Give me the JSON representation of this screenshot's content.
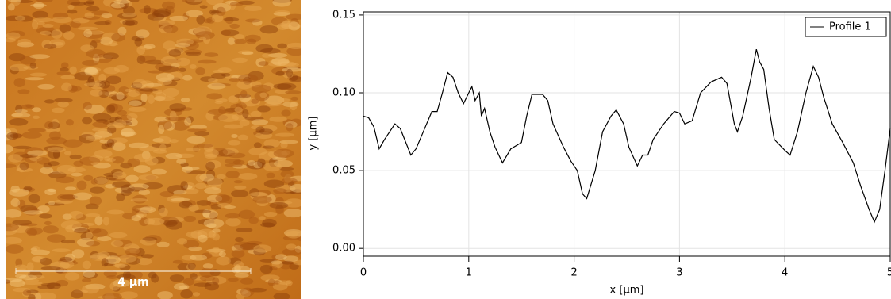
{
  "image": {
    "scale_bar_label": "4 µm"
  },
  "chart_data": {
    "type": "line",
    "xlabel": "x [µm]",
    "ylabel": "y [µm]",
    "xlim": [
      0,
      5
    ],
    "ylim": [
      -0.005,
      0.152
    ],
    "xticks": [
      0,
      1,
      2,
      3,
      4,
      5
    ],
    "yticks": [
      {
        "value": 0,
        "label": "0.00"
      },
      0.05,
      {
        "value": 0.1,
        "label": "0.10"
      },
      0.15
    ],
    "grid": true,
    "legend": "upper right",
    "x": [
      0,
      0.05,
      0.1,
      0.15,
      0.2,
      0.3,
      0.35,
      0.45,
      0.5,
      0.6,
      0.65,
      0.7,
      0.75,
      0.8,
      0.85,
      0.9,
      0.95,
      1.0,
      1.03,
      1.06,
      1.1,
      1.12,
      1.15,
      1.2,
      1.25,
      1.32,
      1.4,
      1.5,
      1.55,
      1.6,
      1.7,
      1.75,
      1.8,
      1.9,
      1.97,
      2.03,
      2.08,
      2.12,
      2.2,
      2.27,
      2.35,
      2.4,
      2.47,
      2.52,
      2.6,
      2.65,
      2.7,
      2.75,
      2.85,
      2.95,
      3.0,
      3.05,
      3.12,
      3.2,
      3.3,
      3.4,
      3.45,
      3.52,
      3.55,
      3.6,
      3.68,
      3.73,
      3.76,
      3.8,
      3.85,
      3.9,
      4.0,
      4.05,
      4.12,
      4.2,
      4.27,
      4.32,
      4.37,
      4.45,
      4.55,
      4.65,
      4.72,
      4.8,
      4.85,
      4.9,
      4.95,
      5.0
    ],
    "series": [
      {
        "name": "Profile 1",
        "color": "#000000",
        "values": [
          0.085,
          0.084,
          0.078,
          0.064,
          0.07,
          0.08,
          0.077,
          0.06,
          0.064,
          0.08,
          0.088,
          0.088,
          0.1,
          0.113,
          0.11,
          0.1,
          0.093,
          0.1,
          0.104,
          0.095,
          0.1,
          0.085,
          0.09,
          0.075,
          0.065,
          0.055,
          0.064,
          0.068,
          0.085,
          0.099,
          0.099,
          0.095,
          0.08,
          0.065,
          0.056,
          0.05,
          0.035,
          0.032,
          0.05,
          0.075,
          0.085,
          0.089,
          0.08,
          0.065,
          0.053,
          0.06,
          0.06,
          0.07,
          0.08,
          0.088,
          0.087,
          0.08,
          0.082,
          0.1,
          0.107,
          0.11,
          0.106,
          0.08,
          0.075,
          0.085,
          0.11,
          0.128,
          0.12,
          0.115,
          0.09,
          0.07,
          0.063,
          0.06,
          0.075,
          0.1,
          0.117,
          0.11,
          0.097,
          0.08,
          0.068,
          0.055,
          0.04,
          0.025,
          0.017,
          0.025,
          0.05,
          0.077
        ]
      }
    ]
  }
}
